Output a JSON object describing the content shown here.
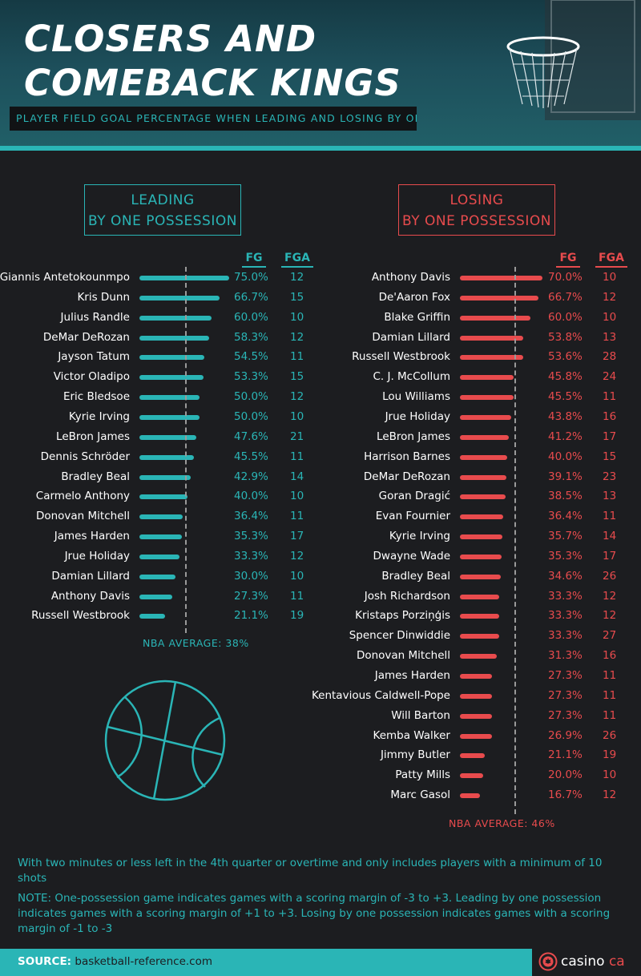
{
  "header": {
    "title_line1": "CLOSERS AND",
    "title_line2": "COMEBACK KINGS",
    "subtitle": "PLAYER FIELD GOAL PERCENTAGE WHEN LEADING AND LOSING BY ONE POSSESSION"
  },
  "colors": {
    "leading": "#2ab5b6",
    "losing": "#e84b4d",
    "background": "#1c1d20"
  },
  "icons": {
    "ball": "basketball-outline-icon",
    "hoop": "basketball-hoop-icon",
    "logo": "maple-leaf-chip-icon"
  },
  "chart_data": [
    {
      "type": "bar",
      "orientation": "horizontal",
      "title_line1": "LEADING",
      "title_line2": "BY ONE POSSESSION",
      "column_headers": [
        "FG",
        "FGA"
      ],
      "average_label": "NBA AVERAGE: 38%",
      "average_value": 38,
      "xlim": [
        0,
        75
      ],
      "rows": [
        {
          "name": "Giannis Antetokounmpo",
          "fg": 75.0,
          "fg_label": "75.0%",
          "fga": "12"
        },
        {
          "name": "Kris Dunn",
          "fg": 66.7,
          "fg_label": "66.7%",
          "fga": "15"
        },
        {
          "name": "Julius Randle",
          "fg": 60.0,
          "fg_label": "60.0%",
          "fga": "10"
        },
        {
          "name": "DeMar DeRozan",
          "fg": 58.3,
          "fg_label": "58.3%",
          "fga": "12"
        },
        {
          "name": "Jayson Tatum",
          "fg": 54.5,
          "fg_label": "54.5%",
          "fga": "11"
        },
        {
          "name": "Victor Oladipo",
          "fg": 53.3,
          "fg_label": "53.3%",
          "fga": "15"
        },
        {
          "name": "Eric Bledsoe",
          "fg": 50.0,
          "fg_label": "50.0%",
          "fga": "12"
        },
        {
          "name": "Kyrie Irving",
          "fg": 50.0,
          "fg_label": "50.0%",
          "fga": "10"
        },
        {
          "name": "LeBron James",
          "fg": 47.6,
          "fg_label": "47.6%",
          "fga": "21"
        },
        {
          "name": "Dennis Schröder",
          "fg": 45.5,
          "fg_label": "45.5%",
          "fga": "11"
        },
        {
          "name": "Bradley Beal",
          "fg": 42.9,
          "fg_label": "42.9%",
          "fga": "14"
        },
        {
          "name": "Carmelo Anthony",
          "fg": 40.0,
          "fg_label": "40.0%",
          "fga": "10"
        },
        {
          "name": "Donovan Mitchell",
          "fg": 36.4,
          "fg_label": "36.4%",
          "fga": "11"
        },
        {
          "name": "James Harden",
          "fg": 35.3,
          "fg_label": "35.3%",
          "fga": "17"
        },
        {
          "name": "Jrue Holiday",
          "fg": 33.3,
          "fg_label": "33.3%",
          "fga": "12"
        },
        {
          "name": "Damian Lillard",
          "fg": 30.0,
          "fg_label": "30.0%",
          "fga": "10"
        },
        {
          "name": "Anthony Davis",
          "fg": 27.3,
          "fg_label": "27.3%",
          "fga": "11"
        },
        {
          "name": "Russell Westbrook",
          "fg": 21.1,
          "fg_label": "21.1%",
          "fga": "19"
        }
      ]
    },
    {
      "type": "bar",
      "orientation": "horizontal",
      "title_line1": "LOSING",
      "title_line2": "BY ONE POSSESSION",
      "column_headers": [
        "FG",
        "FGA"
      ],
      "average_label": "NBA AVERAGE: 46%",
      "average_value": 46,
      "xlim": [
        0,
        70
      ],
      "rows": [
        {
          "name": "Anthony Davis",
          "fg": 70.0,
          "fg_label": "70.0%",
          "fga": "10"
        },
        {
          "name": "De'Aaron Fox",
          "fg": 66.7,
          "fg_label": "66.7%",
          "fga": "12"
        },
        {
          "name": "Blake Griffin",
          "fg": 60.0,
          "fg_label": "60.0%",
          "fga": "10"
        },
        {
          "name": "Damian Lillard",
          "fg": 53.8,
          "fg_label": "53.8%",
          "fga": "13"
        },
        {
          "name": "Russell Westbrook",
          "fg": 53.6,
          "fg_label": "53.6%",
          "fga": "28"
        },
        {
          "name": "C. J. McCollum",
          "fg": 45.8,
          "fg_label": "45.8%",
          "fga": "24"
        },
        {
          "name": "Lou Williams",
          "fg": 45.5,
          "fg_label": "45.5%",
          "fga": "11"
        },
        {
          "name": "Jrue Holiday",
          "fg": 43.8,
          "fg_label": "43.8%",
          "fga": "16"
        },
        {
          "name": "LeBron James",
          "fg": 41.2,
          "fg_label": "41.2%",
          "fga": "17"
        },
        {
          "name": "Harrison Barnes",
          "fg": 40.0,
          "fg_label": "40.0%",
          "fga": "15"
        },
        {
          "name": "DeMar DeRozan",
          "fg": 39.1,
          "fg_label": "39.1%",
          "fga": "23"
        },
        {
          "name": "Goran Dragić",
          "fg": 38.5,
          "fg_label": "38.5%",
          "fga": "13"
        },
        {
          "name": "Evan Fournier",
          "fg": 36.4,
          "fg_label": "36.4%",
          "fga": "11"
        },
        {
          "name": "Kyrie Irving",
          "fg": 35.7,
          "fg_label": "35.7%",
          "fga": "14"
        },
        {
          "name": "Dwayne Wade",
          "fg": 35.3,
          "fg_label": "35.3%",
          "fga": "17"
        },
        {
          "name": "Bradley Beal",
          "fg": 34.6,
          "fg_label": "34.6%",
          "fga": "26"
        },
        {
          "name": "Josh Richardson",
          "fg": 33.3,
          "fg_label": "33.3%",
          "fga": "12"
        },
        {
          "name": "Kristaps Porziņģis",
          "fg": 33.3,
          "fg_label": "33.3%",
          "fga": "12"
        },
        {
          "name": "Spencer Dinwiddie",
          "fg": 33.3,
          "fg_label": "33.3%",
          "fga": "27"
        },
        {
          "name": "Donovan Mitchell",
          "fg": 31.3,
          "fg_label": "31.3%",
          "fga": "16"
        },
        {
          "name": "James Harden",
          "fg": 27.3,
          "fg_label": "27.3%",
          "fga": "11"
        },
        {
          "name": "Kentavious Caldwell-Pope",
          "fg": 27.3,
          "fg_label": "27.3%",
          "fga": "11"
        },
        {
          "name": "Will Barton",
          "fg": 27.3,
          "fg_label": "27.3%",
          "fga": "11"
        },
        {
          "name": "Kemba Walker",
          "fg": 26.9,
          "fg_label": "26.9%",
          "fga": "26"
        },
        {
          "name": "Jimmy Butler",
          "fg": 21.1,
          "fg_label": "21.1%",
          "fga": "19"
        },
        {
          "name": "Patty Mills",
          "fg": 20.0,
          "fg_label": "20.0%",
          "fga": "10"
        },
        {
          "name": "Marc Gasol",
          "fg": 16.7,
          "fg_label": "16.7%",
          "fga": "12"
        }
      ]
    }
  ],
  "footer": {
    "note1": "With two minutes or less left in the 4th quarter or overtime and only includes players with a minimum of 10 shots",
    "note2": "NOTE: One-possession game indicates games with a scoring margin of -3 to +3. Leading by one possession indicates games with a scoring margin of +1 to +3. Losing by one possession indicates games with a scoring margin of -1 to -3",
    "source_label": "SOURCE:",
    "source_value": "basketball-reference.com",
    "brand_name": "casino",
    "brand_suffix": "ca"
  }
}
